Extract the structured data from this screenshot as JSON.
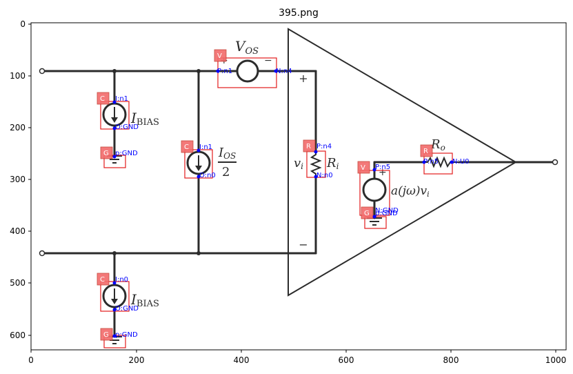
{
  "title": "395.png",
  "x_ticks": [
    "0",
    "200",
    "400",
    "600",
    "800",
    "1000"
  ],
  "y_ticks": [
    "0",
    "100",
    "200",
    "300",
    "400",
    "500",
    "600"
  ],
  "symbols": {
    "vos_main": "V",
    "vos_sub": "OS",
    "ibias_main": "I",
    "ibias_sub": "BIAS",
    "ios_main": "I",
    "ios_sub": "OS",
    "ios_den": "2",
    "vi_main": "v",
    "vi_sub": "i",
    "ri_main": "R",
    "ri_sub": "i",
    "ro_main": "R",
    "ro_sub": "o",
    "gain": "a(jω)v",
    "gain_sub": "i",
    "plus": "+",
    "minus": "−"
  },
  "components": [
    {
      "tag": "V",
      "pins": [
        "P:n1",
        "N:n4"
      ]
    },
    {
      "tag": "C",
      "pins": [
        "I:n1",
        "O:GND"
      ]
    },
    {
      "tag": "G",
      "pins": [
        "p:GND"
      ]
    },
    {
      "tag": "C",
      "pins": [
        "I:n1",
        "O:n0"
      ]
    },
    {
      "tag": "R",
      "pins": [
        "P:n4",
        "N:n0"
      ]
    },
    {
      "tag": "V",
      "pins": [
        "P:n5",
        "N:GND"
      ]
    },
    {
      "tag": "G",
      "pins": [
        "p:GND"
      ]
    },
    {
      "tag": "R",
      "pins": [
        "P:n5",
        "N:U0"
      ]
    },
    {
      "tag": "C",
      "pins": [
        "I:n0",
        "O:GND"
      ]
    },
    {
      "tag": "G",
      "pins": [
        "p:GND"
      ]
    }
  ]
}
